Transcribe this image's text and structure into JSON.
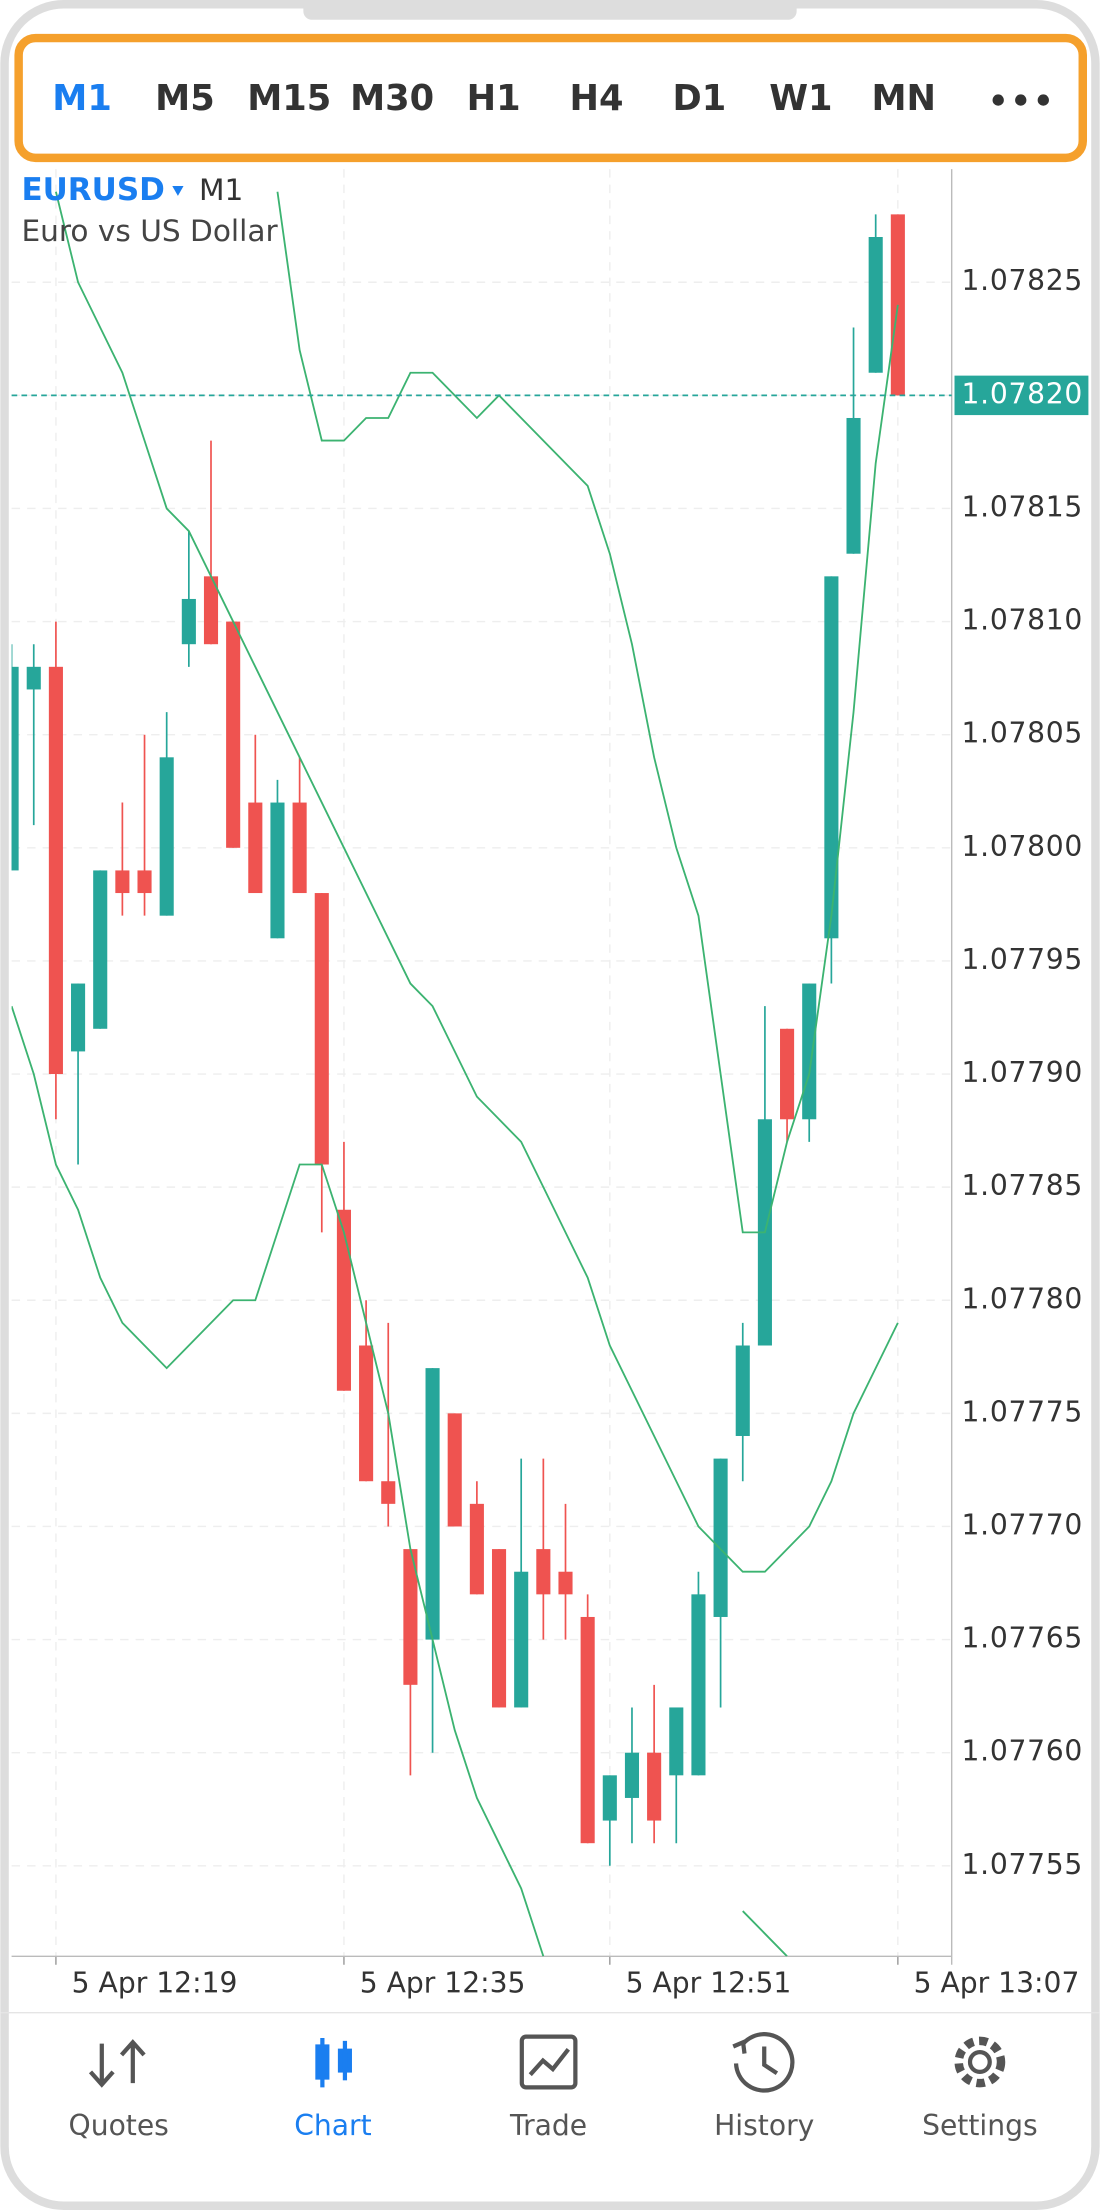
{
  "toolbar": {
    "timeframes": [
      "M1",
      "M5",
      "M15",
      "M30",
      "H1",
      "H4",
      "D1",
      "W1",
      "MN"
    ]
  },
  "chart_data": {
    "type": "candlestick",
    "symbol": "EURUSD",
    "timeframe": "M1",
    "subtitle": "Euro vs US Dollar",
    "categories": [
      null,
      null,
      "5 Apr 12:19",
      null,
      null,
      null,
      null,
      null,
      null,
      null,
      null,
      null,
      null,
      null,
      null,
      "5 Apr 12:35",
      null,
      null,
      null,
      null,
      null,
      null,
      null,
      null,
      null,
      null,
      null,
      "5 Apr 12:51",
      null,
      null,
      null,
      null,
      null,
      null,
      null,
      null,
      null,
      null,
      null,
      null,
      "5 Apr 13:07"
    ],
    "open": [
      1.07799,
      1.07807,
      1.07808,
      1.07791,
      1.07792,
      1.07799,
      1.07799,
      1.07797,
      1.07809,
      1.07812,
      1.0781,
      1.07802,
      1.07796,
      1.07802,
      1.07798,
      1.07784,
      1.07778,
      1.07772,
      1.07769,
      1.07765,
      1.07775,
      1.07771,
      1.07769,
      1.07762,
      1.07769,
      1.07768,
      1.07766,
      1.07757,
      1.07758,
      1.0776,
      1.07759,
      1.07759,
      1.07766,
      1.07774,
      1.07778,
      1.07792,
      1.07788,
      1.07796,
      1.07813,
      1.07821,
      1.07828
    ],
    "high": [
      1.07809,
      1.07809,
      1.0781,
      1.07794,
      1.07799,
      1.07802,
      1.07805,
      1.07806,
      1.07814,
      1.07818,
      1.0781,
      1.07805,
      1.07803,
      1.07804,
      1.07798,
      1.07787,
      1.0778,
      1.07779,
      1.07769,
      1.07777,
      1.07775,
      1.07772,
      1.07769,
      1.07773,
      1.07773,
      1.07771,
      1.07767,
      1.07759,
      1.07762,
      1.07763,
      1.07762,
      1.07768,
      1.07773,
      1.07779,
      1.07793,
      1.07792,
      1.07794,
      1.07812,
      1.07823,
      1.07828,
      1.07828
    ],
    "low": [
      1.07799,
      1.07801,
      1.07788,
      1.07786,
      1.07792,
      1.07797,
      1.07797,
      1.07797,
      1.07808,
      1.07809,
      1.078,
      1.07798,
      1.07796,
      1.07798,
      1.07783,
      1.07776,
      1.07772,
      1.0777,
      1.07759,
      1.0776,
      1.0777,
      1.07767,
      1.07762,
      1.07762,
      1.07765,
      1.07765,
      1.07756,
      1.07755,
      1.07756,
      1.07756,
      1.07756,
      1.07759,
      1.07762,
      1.07772,
      1.07778,
      1.07787,
      1.07787,
      1.07794,
      1.07813,
      1.07821,
      1.0782
    ],
    "close": [
      1.07808,
      1.07808,
      1.0779,
      1.07794,
      1.07799,
      1.07798,
      1.07798,
      1.07804,
      1.07811,
      1.07809,
      1.078,
      1.07798,
      1.07802,
      1.07798,
      1.07786,
      1.07776,
      1.07772,
      1.07771,
      1.07763,
      1.07777,
      1.0777,
      1.07767,
      1.07762,
      1.07768,
      1.07767,
      1.07767,
      1.07756,
      1.07759,
      1.0776,
      1.07757,
      1.07762,
      1.07767,
      1.07773,
      1.07778,
      1.07788,
      1.07788,
      1.07794,
      1.07812,
      1.07819,
      1.07827,
      1.0782
    ],
    "up_color": "#26a69a",
    "down_color": "#ef5350",
    "series": [
      {
        "color": "#3cb371",
        "values": [
          null,
          null,
          null,
          null,
          null,
          null,
          null,
          null,
          null,
          null,
          null,
          null,
          1.07829,
          1.07822,
          1.07818,
          1.07818,
          1.07819,
          1.07819,
          1.07821,
          1.07821,
          1.0782,
          1.07819,
          1.0782,
          1.07819,
          1.07818,
          1.07817,
          1.07816,
          1.07813,
          1.07809,
          1.07804,
          1.078,
          1.07797,
          1.0779,
          1.07783,
          1.07783,
          1.07787,
          1.0779,
          1.07797,
          1.07806,
          1.07817,
          1.07824
        ]
      },
      {
        "color": "#3cb371",
        "values": [
          null,
          null,
          1.07829,
          1.07825,
          1.07823,
          1.07821,
          1.07818,
          1.07815,
          1.07814,
          1.07812,
          1.0781,
          1.07808,
          1.07806,
          1.07804,
          1.07802,
          1.078,
          1.07798,
          1.07796,
          1.07794,
          1.07793,
          1.07791,
          1.07789,
          1.07788,
          1.07787,
          1.07785,
          1.07783,
          1.07781,
          1.07778,
          1.07776,
          1.07774,
          1.07772,
          1.0777,
          1.07769,
          1.07768,
          1.07768,
          1.07769,
          1.0777,
          1.07772,
          1.07775,
          1.07777,
          1.07779
        ]
      },
      {
        "color": "#3cb371",
        "values": [
          1.07793,
          1.0779,
          1.07786,
          1.07784,
          1.07781,
          1.07779,
          1.07778,
          1.07777,
          1.07778,
          1.07779,
          1.0778,
          1.0778,
          1.07783,
          1.07786,
          1.07786,
          1.07783,
          1.07779,
          1.07775,
          1.07769,
          1.07765,
          1.07761,
          1.07758,
          1.07756,
          1.07754,
          1.07751,
          null,
          null,
          null,
          null,
          null,
          null,
          null,
          null,
          1.07753,
          1.07752,
          1.07751,
          null,
          null,
          null,
          null,
          null
        ]
      }
    ],
    "last_price": {
      "value": 1.0782,
      "label": "1.07820"
    },
    "ylim": [
      1.07751,
      1.0783
    ],
    "yticks": [
      1.07755,
      {
        "value": 1.0776,
        "label": "1.07760"
      },
      1.07765,
      {
        "value": 1.0777,
        "label": "1.07770"
      },
      1.07775,
      {
        "value": 1.0778,
        "label": "1.07780"
      },
      1.07785,
      {
        "value": 1.0779,
        "label": "1.07790"
      },
      1.07795,
      {
        "value": 1.078,
        "label": "1.07800"
      },
      1.07805,
      {
        "value": 1.0781,
        "label": "1.07810"
      },
      1.07815,
      {
        "value": 1.0782,
        "label": "1.07820"
      },
      1.07825
    ],
    "grid": true
  },
  "tabs": [
    "Quotes",
    "Chart",
    "Trade",
    "History",
    "Settings"
  ]
}
